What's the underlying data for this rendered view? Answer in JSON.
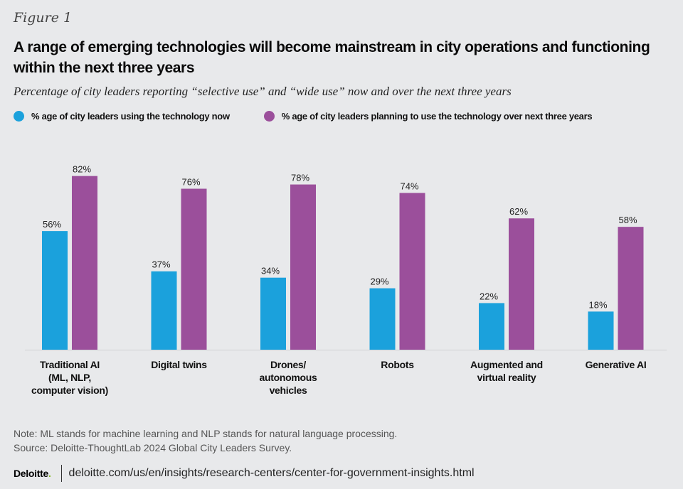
{
  "figure_label": "Figure 1",
  "title": "A range of emerging technologies will become mainstream in city operations and functioning within the next three years",
  "subtitle": "Percentage of city leaders reporting “selective use” and “wide use” now and over the next three years",
  "colors": {
    "now": "#1ba1dc",
    "planned": "#9b4f9b",
    "axis": "#cfd1d4"
  },
  "chart_data": {
    "type": "bar",
    "title": "A range of emerging technologies will become mainstream in city operations and functioning within the next three years",
    "subtitle": "Percentage of city leaders reporting “selective use” and “wide use” now and over the next three years",
    "xlabel": "",
    "ylabel": "",
    "ylim": [
      0,
      100
    ],
    "grid": false,
    "legend_position": "top-left",
    "categories": [
      "Traditional AI\n(ML, NLP,\ncomputer vision)",
      "Digital twins",
      "Drones/\nautonomous\nvehicles",
      "Robots",
      "Augmented and\nvirtual reality",
      "Generative AI"
    ],
    "series": [
      {
        "name": "% age of city leaders using the technology now",
        "values": [
          56,
          37,
          34,
          29,
          22,
          18
        ]
      },
      {
        "name": "% age of city leaders planning to use the technology over next three years",
        "values": [
          82,
          76,
          78,
          74,
          62,
          58
        ]
      }
    ],
    "value_suffix": "%"
  },
  "note": "Note: ML stands for machine learning and NLP stands for natural language processing.",
  "source": "Source: Deloitte-ThoughtLab 2024 Global City Leaders Survey.",
  "footer": {
    "logo": "Deloitte",
    "logo_dot": ".",
    "url": "deloitte.com/us/en/insights/research-centers/center-for-government-insights.html"
  }
}
